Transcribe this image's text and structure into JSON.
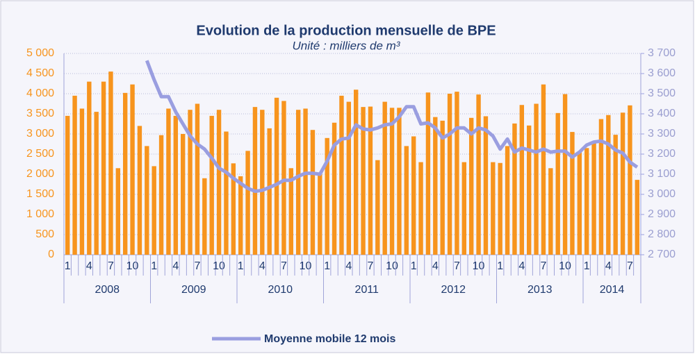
{
  "chart_data": {
    "type": "bar",
    "title": "Evolution de la production mensuelle de BPE",
    "subtitle": "Unité : milliers de m³",
    "categories": [
      "1",
      null,
      null,
      "4",
      null,
      null,
      "7",
      null,
      null,
      "10",
      null,
      null,
      "1",
      null,
      null,
      "4",
      null,
      null,
      "7",
      null,
      null,
      "10",
      null,
      null,
      "1",
      null,
      null,
      "4",
      null,
      null,
      "7",
      null,
      null,
      "10",
      null,
      null,
      "1",
      null,
      null,
      "4",
      null,
      null,
      "7",
      null,
      null,
      "10",
      null,
      null,
      "1",
      null,
      null,
      "4",
      null,
      null,
      "7",
      null,
      null,
      "10",
      null,
      null,
      "1",
      null,
      null,
      "4",
      null,
      null,
      "7",
      null,
      null,
      "10",
      null,
      null,
      "1",
      null,
      null,
      "4",
      null,
      null,
      "7",
      null
    ],
    "years": [
      "2008",
      "2009",
      "2010",
      "2011",
      "2012",
      "2013",
      "2014"
    ],
    "series": [
      {
        "type": "bar",
        "color": "#f7941d",
        "values": [
          3450,
          3950,
          3630,
          4300,
          3550,
          4300,
          4550,
          2150,
          4020,
          4230,
          3200,
          2700,
          2200,
          2970,
          3630,
          3450,
          3000,
          3600,
          3750,
          1900,
          3450,
          3600,
          3060,
          2270,
          1950,
          2580,
          3670,
          3600,
          3140,
          3900,
          3820,
          2150,
          3600,
          3630,
          3100,
          2000,
          2900,
          3280,
          3950,
          3800,
          4100,
          3670,
          3680,
          2350,
          3800,
          3650,
          3650,
          2700,
          2940,
          2300,
          4030,
          3420,
          3330,
          4000,
          4050,
          2300,
          3400,
          3980,
          3440,
          2300,
          2280,
          2700,
          3260,
          3720,
          3210,
          3750,
          4230,
          2150,
          3520,
          3990,
          3050,
          2560,
          2650,
          2800,
          3370,
          3470,
          2980,
          3530,
          3710,
          1860
        ]
      },
      {
        "type": "line",
        "name": "Moyenne mobile 12 mois",
        "color": "#9a9ee0",
        "axis": "y2",
        "values": [
          null,
          null,
          null,
          null,
          null,
          null,
          null,
          null,
          null,
          null,
          null,
          3665,
          3570,
          3485,
          3485,
          3410,
          3350,
          3290,
          3250,
          3225,
          3180,
          3130,
          3110,
          3080,
          3055,
          3030,
          3015,
          3020,
          3035,
          3050,
          3070,
          3070,
          3090,
          3105,
          3105,
          3100,
          3165,
          3245,
          3275,
          3280,
          3345,
          3325,
          3320,
          3330,
          3345,
          3350,
          3385,
          3435,
          3435,
          3350,
          3355,
          3330,
          3280,
          3300,
          3330,
          3330,
          3300,
          3330,
          3320,
          3290,
          3225,
          3275,
          3210,
          3230,
          3220,
          3210,
          3225,
          3210,
          3215,
          3215,
          3185,
          3210,
          3245,
          3260,
          3265,
          3250,
          3220,
          3205,
          3160,
          3135
        ]
      }
    ],
    "ylim": [
      0,
      5000
    ],
    "yticks": [
      0,
      500,
      {
        "value": 1000,
        "label": "1 000"
      },
      {
        "value": 1500,
        "label": "1 500"
      },
      {
        "value": 2000,
        "label": "2 000"
      },
      {
        "value": 2500,
        "label": "2 500"
      },
      {
        "value": 3000,
        "label": "3 000"
      },
      {
        "value": 3500,
        "label": "3 500"
      },
      {
        "value": 4000,
        "label": "4 000"
      },
      {
        "value": 4500,
        "label": "4 500"
      },
      {
        "value": 5000,
        "label": "5 000"
      }
    ],
    "y2lim": [
      2700,
      3700
    ],
    "y2ticks": [
      {
        "value": 2700,
        "label": "2 700"
      },
      {
        "value": 2800,
        "label": "2 800"
      },
      {
        "value": 2900,
        "label": "2 900"
      },
      {
        "value": 3000,
        "label": "3 000"
      },
      {
        "value": 3100,
        "label": "3 100"
      },
      {
        "value": 3200,
        "label": "3 200"
      },
      {
        "value": 3300,
        "label": "3 300"
      },
      {
        "value": 3400,
        "label": "3 400"
      },
      {
        "value": 3500,
        "label": "3 500"
      },
      {
        "value": 3600,
        "label": "3 600"
      },
      {
        "value": 3700,
        "label": "3 700"
      }
    ],
    "grid": true,
    "legend": "bottom"
  }
}
